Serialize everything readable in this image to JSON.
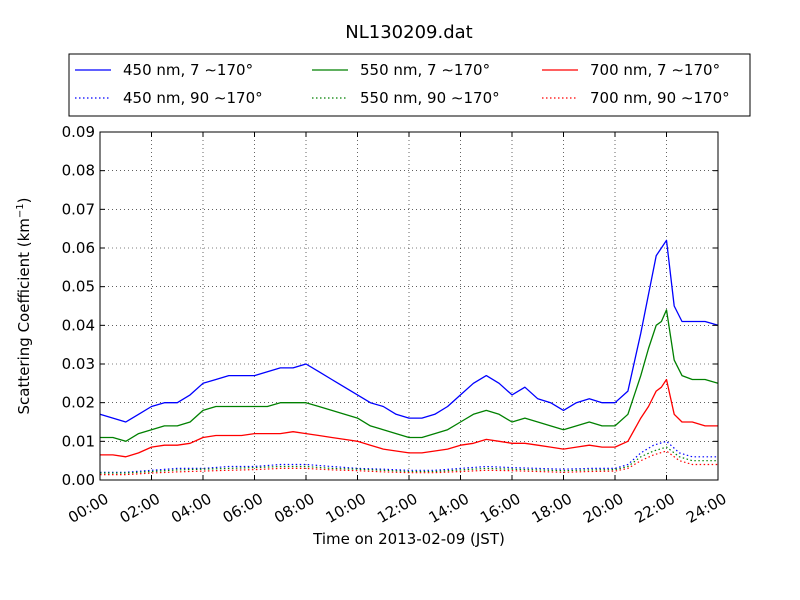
{
  "chart_data": {
    "type": "line",
    "title": "NL130209.dat",
    "xlabel": "Time on 2013-02-09 (JST)",
    "ylabel": "Scattering Coefficient (km",
    "ylabel_unit_sup": "−1",
    "ylabel_close": ")",
    "xlim": [
      0,
      24
    ],
    "ylim": [
      0,
      0.09
    ],
    "grid": true,
    "legend_position": "top",
    "x_ticks": [
      0,
      2,
      4,
      6,
      8,
      10,
      12,
      14,
      16,
      18,
      20,
      22,
      24
    ],
    "x_tick_labels": [
      "00:00",
      "02:00",
      "04:00",
      "06:00",
      "08:00",
      "10:00",
      "12:00",
      "14:00",
      "16:00",
      "18:00",
      "20:00",
      "22:00",
      "24:00"
    ],
    "y_ticks": [
      0,
      0.01,
      0.02,
      0.03,
      0.04,
      0.05,
      0.06,
      0.07,
      0.08,
      0.09
    ],
    "y_tick_labels": [
      "0.00",
      "0.01",
      "0.02",
      "0.03",
      "0.04",
      "0.05",
      "0.06",
      "0.07",
      "0.08",
      "0.09"
    ],
    "legend_entries": [
      "450 nm, 7 ∼170°",
      "550 nm, 7 ∼170°",
      "700 nm, 7 ∼170°",
      "450 nm, 90 ∼170°",
      "550 nm, 90 ∼170°",
      "700 nm, 90 ∼170°"
    ],
    "series": [
      {
        "name": "450 nm, 7 ∼170°",
        "color": "#0000ff",
        "style": "solid",
        "x": [
          0,
          0.5,
          1,
          1.5,
          2,
          2.5,
          3,
          3.5,
          4,
          4.5,
          5,
          5.5,
          6,
          6.5,
          7,
          7.5,
          8,
          8.5,
          9,
          9.5,
          10,
          10.5,
          11,
          11.5,
          12,
          12.5,
          13,
          13.5,
          14,
          14.5,
          15,
          15.5,
          16,
          16.5,
          17,
          17.5,
          18,
          18.5,
          19,
          19.5,
          20,
          20.5,
          21,
          21.3,
          21.6,
          21.8,
          22,
          22.3,
          22.6,
          23,
          23.5,
          24
        ],
        "y": [
          0.017,
          0.016,
          0.015,
          0.017,
          0.019,
          0.02,
          0.02,
          0.022,
          0.025,
          0.026,
          0.027,
          0.027,
          0.027,
          0.028,
          0.029,
          0.029,
          0.03,
          0.028,
          0.026,
          0.024,
          0.022,
          0.02,
          0.019,
          0.017,
          0.016,
          0.016,
          0.017,
          0.019,
          0.022,
          0.025,
          0.027,
          0.025,
          0.022,
          0.024,
          0.021,
          0.02,
          0.018,
          0.02,
          0.021,
          0.02,
          0.02,
          0.023,
          0.038,
          0.048,
          0.058,
          0.06,
          0.062,
          0.045,
          0.041,
          0.041,
          0.041,
          0.04
        ]
      },
      {
        "name": "550 nm, 7 ∼170°",
        "color": "#008000",
        "style": "solid",
        "x": [
          0,
          0.5,
          1,
          1.5,
          2,
          2.5,
          3,
          3.5,
          4,
          4.5,
          5,
          5.5,
          6,
          6.5,
          7,
          7.5,
          8,
          8.5,
          9,
          9.5,
          10,
          10.5,
          11,
          11.5,
          12,
          12.5,
          13,
          13.5,
          14,
          14.5,
          15,
          15.5,
          16,
          16.5,
          17,
          17.5,
          18,
          18.5,
          19,
          19.5,
          20,
          20.5,
          21,
          21.3,
          21.6,
          21.8,
          22,
          22.3,
          22.6,
          23,
          23.5,
          24
        ],
        "y": [
          0.011,
          0.011,
          0.01,
          0.012,
          0.013,
          0.014,
          0.014,
          0.015,
          0.018,
          0.019,
          0.019,
          0.019,
          0.019,
          0.019,
          0.02,
          0.02,
          0.02,
          0.019,
          0.018,
          0.017,
          0.016,
          0.014,
          0.013,
          0.012,
          0.011,
          0.011,
          0.012,
          0.013,
          0.015,
          0.017,
          0.018,
          0.017,
          0.015,
          0.016,
          0.015,
          0.014,
          0.013,
          0.014,
          0.015,
          0.014,
          0.014,
          0.017,
          0.027,
          0.034,
          0.04,
          0.041,
          0.044,
          0.031,
          0.027,
          0.026,
          0.026,
          0.025
        ]
      },
      {
        "name": "700 nm, 7 ∼170°",
        "color": "#ff0000",
        "style": "solid",
        "x": [
          0,
          0.5,
          1,
          1.5,
          2,
          2.5,
          3,
          3.5,
          4,
          4.5,
          5,
          5.5,
          6,
          6.5,
          7,
          7.5,
          8,
          8.5,
          9,
          9.5,
          10,
          10.5,
          11,
          11.5,
          12,
          12.5,
          13,
          13.5,
          14,
          14.5,
          15,
          15.5,
          16,
          16.5,
          17,
          17.5,
          18,
          18.5,
          19,
          19.5,
          20,
          20.5,
          21,
          21.3,
          21.6,
          21.8,
          22,
          22.3,
          22.6,
          23,
          23.5,
          24
        ],
        "y": [
          0.0065,
          0.0065,
          0.006,
          0.007,
          0.0085,
          0.009,
          0.009,
          0.0095,
          0.011,
          0.0115,
          0.0115,
          0.0115,
          0.012,
          0.012,
          0.012,
          0.0125,
          0.012,
          0.0115,
          0.011,
          0.0105,
          0.01,
          0.009,
          0.008,
          0.0075,
          0.007,
          0.007,
          0.0075,
          0.008,
          0.009,
          0.0095,
          0.0105,
          0.01,
          0.0095,
          0.0095,
          0.009,
          0.0085,
          0.008,
          0.0085,
          0.009,
          0.0085,
          0.0085,
          0.01,
          0.016,
          0.019,
          0.023,
          0.024,
          0.026,
          0.017,
          0.015,
          0.015,
          0.014,
          0.014
        ]
      },
      {
        "name": "450 nm, 90 ∼170°",
        "color": "#0000ff",
        "style": "dotted",
        "x": [
          0,
          1,
          2,
          3,
          4,
          5,
          6,
          7,
          8,
          9,
          10,
          11,
          12,
          13,
          14,
          15,
          16,
          17,
          18,
          19,
          20,
          20.5,
          21,
          21.5,
          22,
          22.5,
          23,
          24
        ],
        "y": [
          0.002,
          0.002,
          0.0025,
          0.003,
          0.003,
          0.0035,
          0.0035,
          0.004,
          0.004,
          0.0035,
          0.003,
          0.0028,
          0.0025,
          0.0025,
          0.003,
          0.0035,
          0.0032,
          0.003,
          0.0028,
          0.003,
          0.003,
          0.004,
          0.007,
          0.009,
          0.01,
          0.007,
          0.006,
          0.006
        ]
      },
      {
        "name": "550 nm, 90 ∼170°",
        "color": "#008000",
        "style": "dotted",
        "x": [
          0,
          1,
          2,
          3,
          4,
          5,
          6,
          7,
          8,
          9,
          10,
          11,
          12,
          13,
          14,
          15,
          16,
          17,
          18,
          19,
          20,
          20.5,
          21,
          21.5,
          22,
          22.5,
          23,
          24
        ],
        "y": [
          0.0018,
          0.0018,
          0.0022,
          0.0026,
          0.0028,
          0.003,
          0.0032,
          0.0035,
          0.0035,
          0.003,
          0.0028,
          0.0025,
          0.0022,
          0.0022,
          0.0026,
          0.003,
          0.0028,
          0.0026,
          0.0024,
          0.0026,
          0.0027,
          0.0035,
          0.006,
          0.0075,
          0.0085,
          0.006,
          0.005,
          0.005
        ]
      },
      {
        "name": "700 nm, 90 ∼170°",
        "color": "#ff0000",
        "style": "dotted",
        "x": [
          0,
          1,
          2,
          3,
          4,
          5,
          6,
          7,
          8,
          9,
          10,
          11,
          12,
          13,
          14,
          15,
          16,
          17,
          18,
          19,
          20,
          20.5,
          21,
          21.5,
          22,
          22.5,
          23,
          24
        ],
        "y": [
          0.0014,
          0.0014,
          0.0018,
          0.0021,
          0.0023,
          0.0025,
          0.0027,
          0.003,
          0.003,
          0.0026,
          0.0024,
          0.0021,
          0.0019,
          0.0019,
          0.0022,
          0.0025,
          0.0024,
          0.0022,
          0.002,
          0.0022,
          0.0023,
          0.003,
          0.005,
          0.0065,
          0.0075,
          0.005,
          0.004,
          0.004
        ]
      }
    ]
  }
}
